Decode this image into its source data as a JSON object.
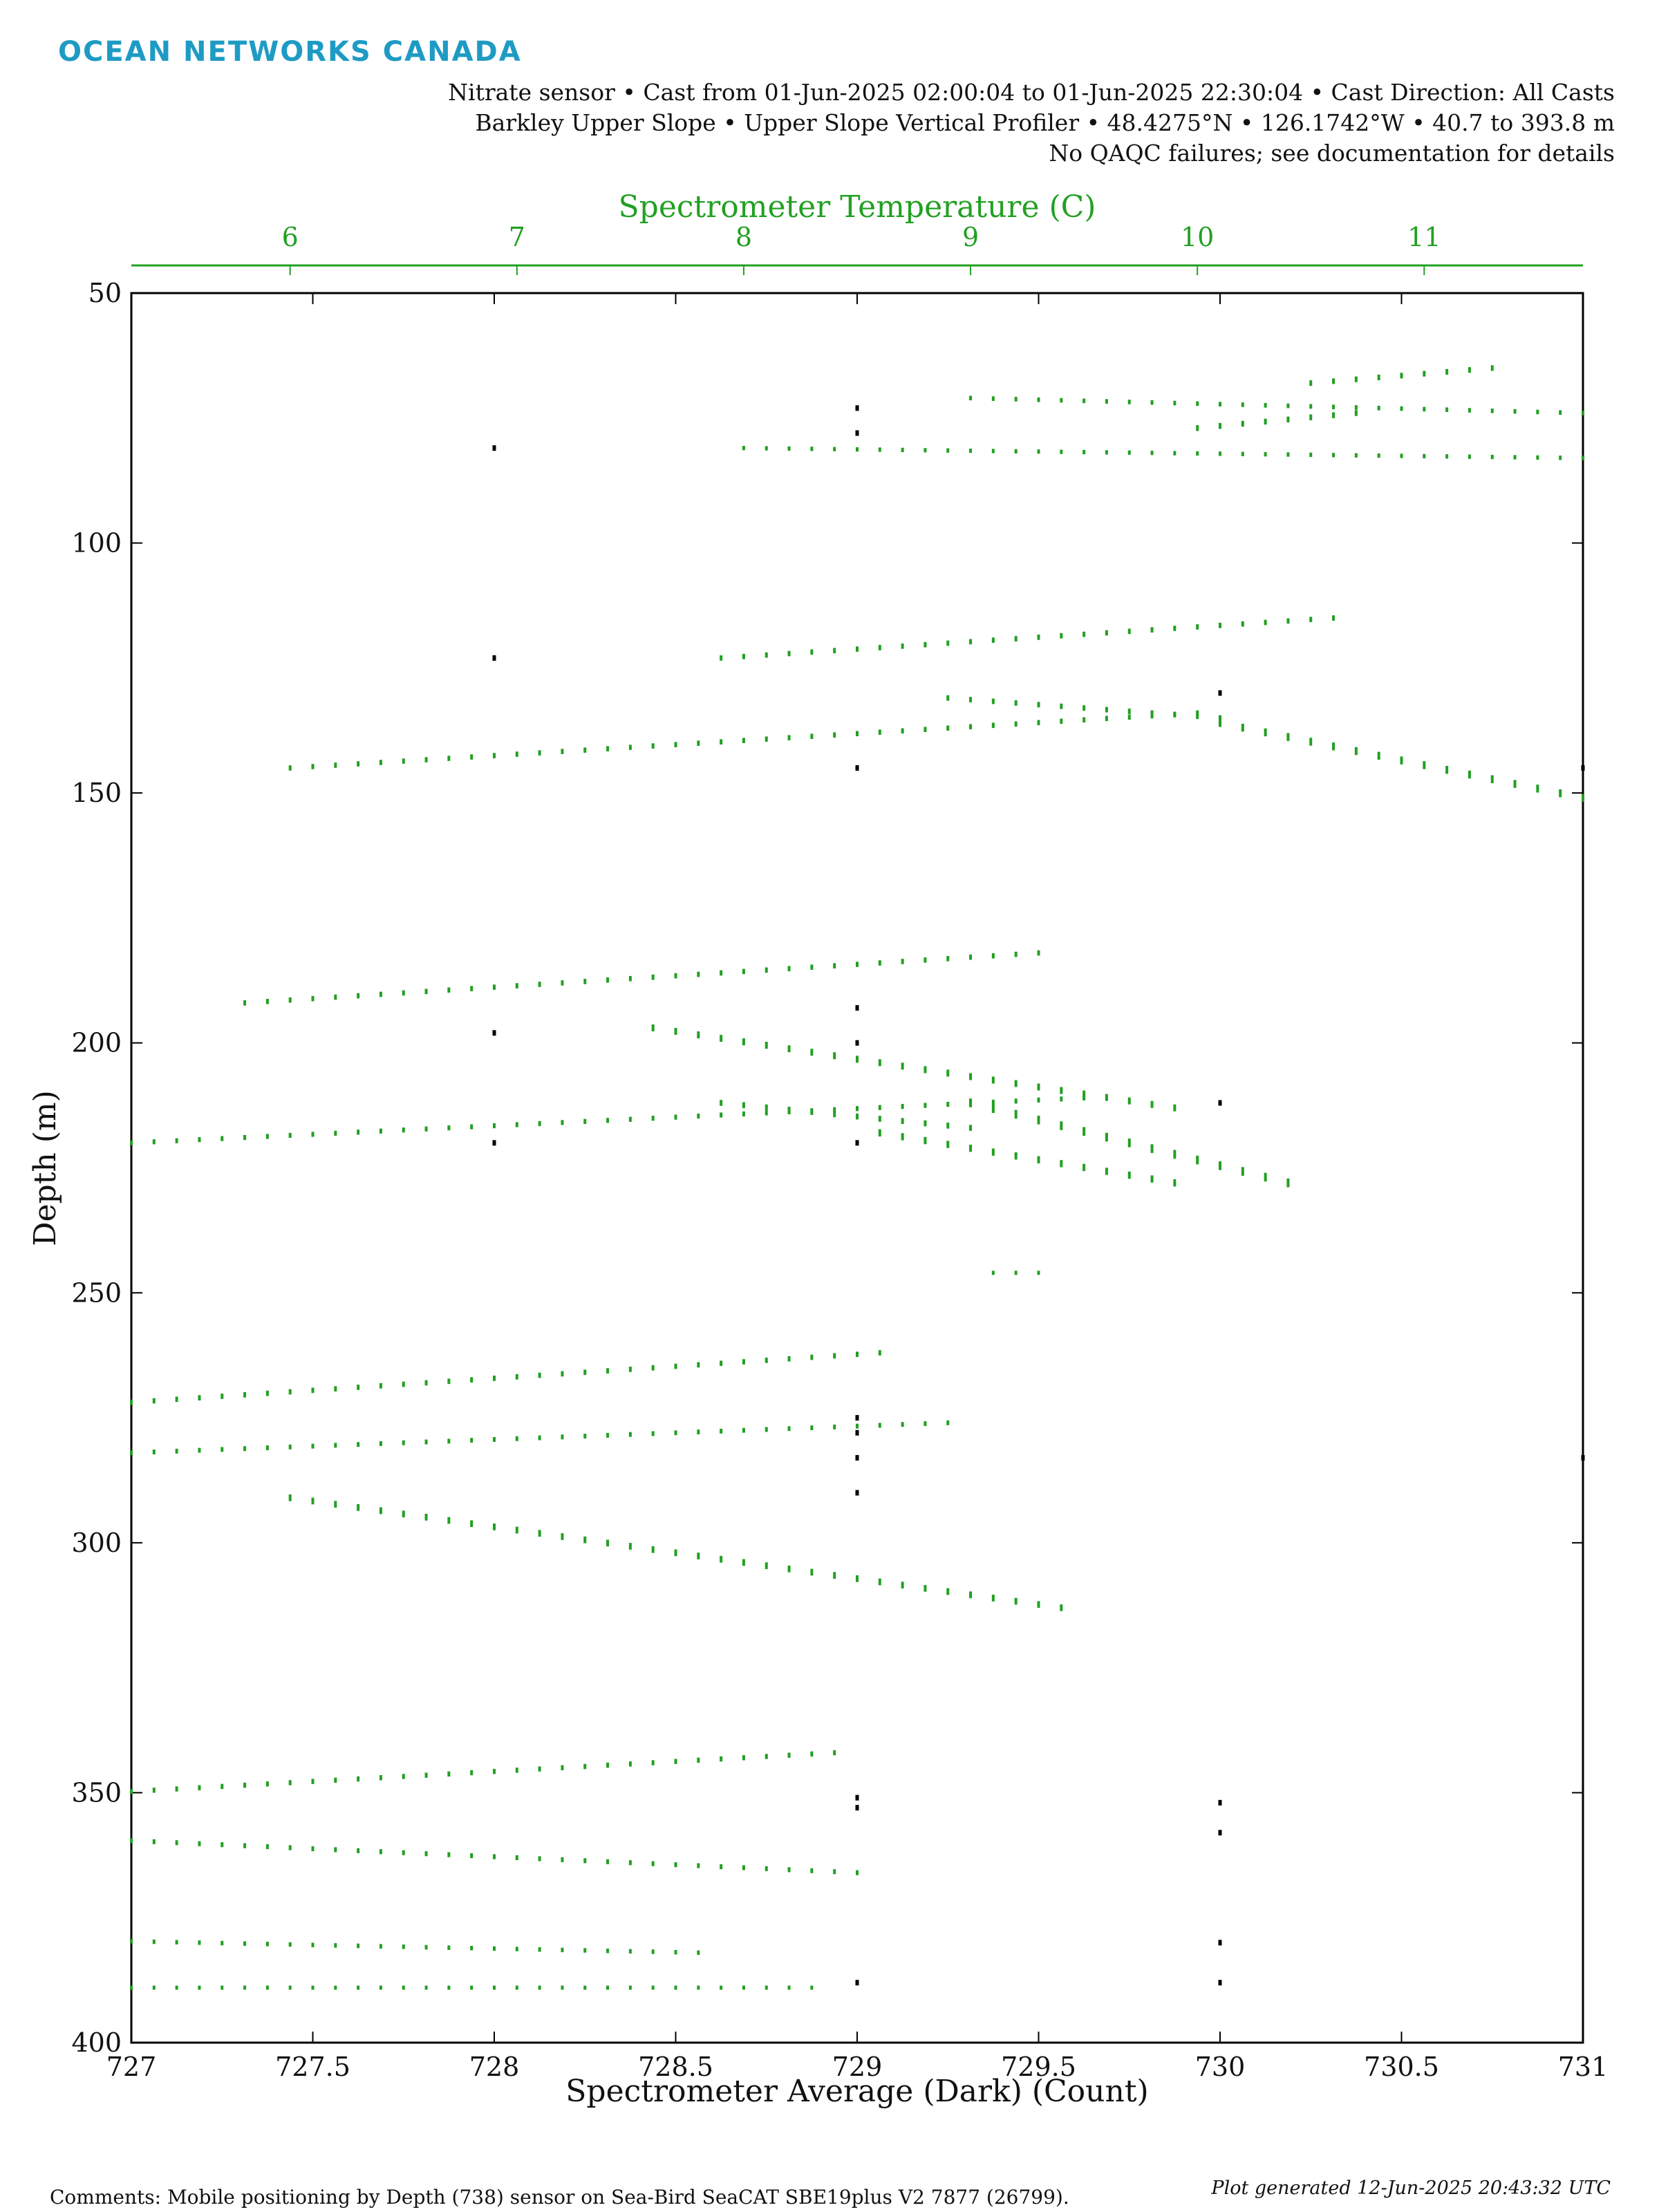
{
  "header": {
    "logo": "OCEAN NETWORKS CANADA",
    "line1": "Nitrate sensor • Cast from 01-Jun-2025 02:00:04 to 01-Jun-2025 22:30:04 • Cast Direction: All Casts",
    "line2": "Barkley Upper Slope • Upper Slope Vertical Profiler • 48.4275°N • 126.1742°W • 40.7 to 393.8 m",
    "line3": "No QAQC failures; see documentation for details"
  },
  "footer": {
    "comments": "Comments: Mobile positioning by Depth (738) sensor on Sea-Bird SeaCAT SBE19plus V2 7877 (26799).",
    "generated": "Plot generated 12-Jun-2025 20:43:32 UTC"
  },
  "colors": {
    "temperature": "#22a022",
    "average": "#000000",
    "logo": "#1e9bc4"
  },
  "chart_data": {
    "type": "scatter",
    "xlabel": "Spectrometer Average (Dark) (Count)",
    "x2label": "Spectrometer Temperature (C)",
    "ylabel": "Depth (m)",
    "xlim": [
      727,
      731
    ],
    "x2lim": [
      5.3,
      11.7
    ],
    "ylim": [
      400,
      50
    ],
    "x_ticks": [
      "727",
      "727.5",
      "728",
      "728.5",
      "729",
      "729.5",
      "730",
      "730.5",
      "731"
    ],
    "x2_ticks": [
      "6",
      "7",
      "8",
      "9",
      "10",
      "11"
    ],
    "y_ticks": [
      "50",
      "100",
      "150",
      "200",
      "250",
      "300",
      "350",
      "400"
    ],
    "grid": false,
    "series": [
      {
        "name": "Spectrometer Temperature (C)",
        "axis": "top",
        "segments": [
          {
            "x": [
              8.0,
              11.7
            ],
            "y": [
              81,
              83
            ]
          },
          {
            "x": [
              9.0,
              11.7
            ],
            "y": [
              71,
              74
            ]
          },
          {
            "x": [
              10.5,
              11.3
            ],
            "y": [
              68,
              65
            ]
          },
          {
            "x": [
              10.0,
              10.7
            ],
            "y": [
              77,
              74
            ]
          },
          {
            "x": [
              7.9,
              10.6
            ],
            "y": [
              123,
              115
            ]
          },
          {
            "x": [
              6.0,
              10.0
            ],
            "y": [
              145,
              134
            ]
          },
          {
            "x": [
              8.9,
              10.1
            ],
            "y": [
              131,
              135
            ]
          },
          {
            "x": [
              10.1,
              11.7
            ],
            "y": [
              136,
              151
            ]
          },
          {
            "x": [
              5.8,
              9.3
            ],
            "y": [
              192,
              182
            ]
          },
          {
            "x": [
              7.6,
              9.9
            ],
            "y": [
              197,
              213
            ]
          },
          {
            "x": [
              5.3,
              9.5
            ],
            "y": [
              220,
              211
            ]
          },
          {
            "x": [
              7.9,
              9.0
            ],
            "y": [
              212,
              217
            ]
          },
          {
            "x": [
              9.0,
              10.4
            ],
            "y": [
              212,
              228
            ]
          },
          {
            "x": [
              8.6,
              9.9
            ],
            "y": [
              218,
              228
            ]
          },
          {
            "x": [
              9.1,
              9.3
            ],
            "y": [
              246,
              246
            ]
          },
          {
            "x": [
              4.6,
              8.6
            ],
            "y": [
              274,
              262
            ]
          },
          {
            "x": [
              4.7,
              8.9
            ],
            "y": [
              283,
              276
            ]
          },
          {
            "x": [
              6.0,
              9.4
            ],
            "y": [
              291,
              313
            ]
          },
          {
            "x": [
              4.0,
              8.4
            ],
            "y": [
              353,
              342
            ]
          },
          {
            "x": [
              5.0,
              8.5
            ],
            "y": [
              359,
              366
            ]
          },
          {
            "x": [
              4.5,
              7.8
            ],
            "y": [
              379,
              382
            ]
          },
          {
            "x": [
              4.2,
              8.3
            ],
            "y": [
              389,
              389
            ]
          }
        ]
      },
      {
        "name": "Spectrometer Average (Dark) (Count)",
        "axis": "bottom",
        "points": [
          {
            "x": 729,
            "y": 73
          },
          {
            "x": 729,
            "y": 78
          },
          {
            "x": 728,
            "y": 81
          },
          {
            "x": 728,
            "y": 123
          },
          {
            "x": 729,
            "y": 145
          },
          {
            "x": 730,
            "y": 130
          },
          {
            "x": 731,
            "y": 145
          },
          {
            "x": 728,
            "y": 198
          },
          {
            "x": 729,
            "y": 193
          },
          {
            "x": 729,
            "y": 200
          },
          {
            "x": 730,
            "y": 212
          },
          {
            "x": 728,
            "y": 220
          },
          {
            "x": 729,
            "y": 220
          },
          {
            "x": 729,
            "y": 275
          },
          {
            "x": 729,
            "y": 278
          },
          {
            "x": 729,
            "y": 283
          },
          {
            "x": 729,
            "y": 290
          },
          {
            "x": 731,
            "y": 283
          },
          {
            "x": 729,
            "y": 351
          },
          {
            "x": 729,
            "y": 353
          },
          {
            "x": 730,
            "y": 352
          },
          {
            "x": 730,
            "y": 358
          },
          {
            "x": 730,
            "y": 380
          },
          {
            "x": 729,
            "y": 388
          },
          {
            "x": 730,
            "y": 388
          }
        ]
      }
    ]
  }
}
